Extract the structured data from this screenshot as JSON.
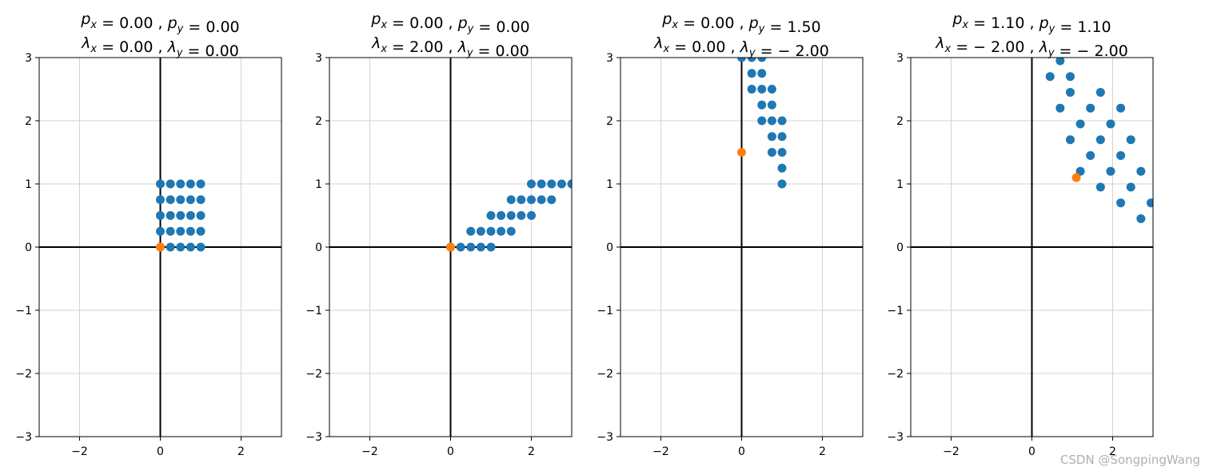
{
  "chart_data": [
    {
      "type": "scatter",
      "title_lines": [
        "p_x = 0.00 , p_y = 0.00",
        "λ_x = 0.00 , λ_y = 0.00"
      ],
      "xlim": [
        -3,
        3
      ],
      "ylim": [
        -3,
        3
      ],
      "xticks": [
        -2,
        0,
        2
      ],
      "yticks": [
        -3,
        -2,
        -1,
        0,
        1,
        2,
        3
      ],
      "grid": true,
      "series": [
        {
          "color": "#1f77b4",
          "points": [
            [
              0,
              0
            ],
            [
              0.25,
              0
            ],
            [
              0.5,
              0
            ],
            [
              0.75,
              0
            ],
            [
              1,
              0
            ],
            [
              0,
              0.25
            ],
            [
              0.25,
              0.25
            ],
            [
              0.5,
              0.25
            ],
            [
              0.75,
              0.25
            ],
            [
              1,
              0.25
            ],
            [
              0,
              0.5
            ],
            [
              0.25,
              0.5
            ],
            [
              0.5,
              0.5
            ],
            [
              0.75,
              0.5
            ],
            [
              1,
              0.5
            ],
            [
              0,
              0.75
            ],
            [
              0.25,
              0.75
            ],
            [
              0.5,
              0.75
            ],
            [
              0.75,
              0.75
            ],
            [
              1,
              0.75
            ],
            [
              0,
              1
            ],
            [
              0.25,
              1
            ],
            [
              0.5,
              1
            ],
            [
              0.75,
              1
            ],
            [
              1,
              1
            ]
          ]
        },
        {
          "color": "#ff7f0e",
          "points": [
            [
              0,
              0
            ]
          ]
        }
      ]
    },
    {
      "type": "scatter",
      "title_lines": [
        "p_x = 0.00 , p_y = 0.00",
        "λ_x = 2.00 , λ_y = 0.00"
      ],
      "xlim": [
        -3,
        3
      ],
      "ylim": [
        -3,
        3
      ],
      "xticks": [
        -2,
        0,
        2
      ],
      "yticks": [
        -3,
        -2,
        -1,
        0,
        1,
        2,
        3
      ],
      "grid": true,
      "series": [
        {
          "color": "#1f77b4",
          "points": [
            [
              0,
              0
            ],
            [
              0.25,
              0
            ],
            [
              0.5,
              0
            ],
            [
              0.75,
              0
            ],
            [
              1,
              0
            ],
            [
              0.5,
              0.25
            ],
            [
              0.75,
              0.25
            ],
            [
              1,
              0.25
            ],
            [
              1.25,
              0.25
            ],
            [
              1.5,
              0.25
            ],
            [
              1,
              0.5
            ],
            [
              1.25,
              0.5
            ],
            [
              1.5,
              0.5
            ],
            [
              1.75,
              0.5
            ],
            [
              2,
              0.5
            ],
            [
              1.5,
              0.75
            ],
            [
              1.75,
              0.75
            ],
            [
              2,
              0.75
            ],
            [
              2.25,
              0.75
            ],
            [
              2.5,
              0.75
            ],
            [
              2,
              1
            ],
            [
              2.25,
              1
            ],
            [
              2.5,
              1
            ],
            [
              2.75,
              1
            ],
            [
              3,
              1
            ]
          ]
        },
        {
          "color": "#ff7f0e",
          "points": [
            [
              0,
              0
            ]
          ]
        }
      ]
    },
    {
      "type": "scatter",
      "title_lines": [
        "p_x = 0.00 , p_y = 1.50",
        "λ_x = 0.00 , λ_y = − 2.00"
      ],
      "xlim": [
        -3,
        3
      ],
      "ylim": [
        -3,
        3
      ],
      "xticks": [
        -2,
        0,
        2
      ],
      "yticks": [
        -3,
        -2,
        -1,
        0,
        1,
        2,
        3
      ],
      "grid": true,
      "series": [
        {
          "color": "#1f77b4",
          "points": [
            [
              0,
              3
            ],
            [
              0.25,
              3
            ],
            [
              0.5,
              3
            ],
            [
              0.25,
              2.75
            ],
            [
              0.5,
              2.75
            ],
            [
              0.25,
              2.5
            ],
            [
              0.5,
              2.5
            ],
            [
              0.75,
              2.5
            ],
            [
              0.5,
              2.25
            ],
            [
              0.75,
              2.25
            ],
            [
              0.5,
              2
            ],
            [
              0.75,
              2
            ],
            [
              1,
              2
            ],
            [
              0.75,
              1.75
            ],
            [
              1,
              1.75
            ],
            [
              0.75,
              1.5
            ],
            [
              1,
              1.5
            ],
            [
              1,
              1.25
            ],
            [
              1,
              1
            ]
          ]
        },
        {
          "color": "#ff7f0e",
          "points": [
            [
              0,
              1.5
            ]
          ]
        }
      ]
    },
    {
      "type": "scatter",
      "title_lines": [
        "p_x = 1.10 , p_y = 1.10",
        "λ_x = − 2.00 , λ_y = − 2.00"
      ],
      "xlim": [
        -3,
        3
      ],
      "ylim": [
        -3,
        3
      ],
      "xticks": [
        -2,
        0,
        2
      ],
      "yticks": [
        -3,
        -2,
        -1,
        0,
        1,
        2,
        3
      ],
      "grid": true,
      "series": [
        {
          "color": "#1f77b4",
          "points": [
            [
              0.7,
              2.95
            ],
            [
              0.45,
              2.7
            ],
            [
              0.95,
              2.7
            ],
            [
              0.95,
              2.45
            ],
            [
              1.7,
              2.45
            ],
            [
              0.7,
              2.2
            ],
            [
              1.45,
              2.2
            ],
            [
              2.2,
              2.2
            ],
            [
              1.2,
              1.95
            ],
            [
              1.95,
              1.95
            ],
            [
              0.95,
              1.7
            ],
            [
              1.7,
              1.7
            ],
            [
              2.45,
              1.7
            ],
            [
              1.45,
              1.45
            ],
            [
              2.2,
              1.45
            ],
            [
              1.2,
              1.2
            ],
            [
              1.95,
              1.2
            ],
            [
              2.7,
              1.2
            ],
            [
              1.7,
              0.95
            ],
            [
              2.45,
              0.95
            ],
            [
              2.2,
              0.7
            ],
            [
              2.95,
              0.7
            ],
            [
              2.7,
              0.45
            ]
          ]
        },
        {
          "color": "#ff7f0e",
          "points": [
            [
              1.1,
              1.1
            ]
          ]
        }
      ]
    }
  ],
  "watermark": "CSDN @SongpingWang"
}
